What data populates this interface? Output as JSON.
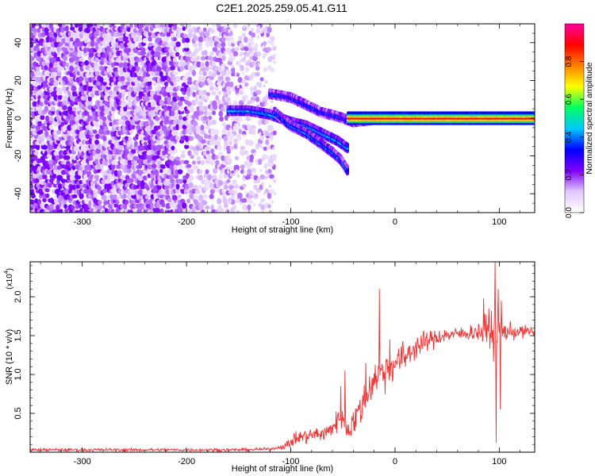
{
  "title": "C2E1.2025.259.05.41.G11",
  "chart_data": [
    {
      "type": "heatmap",
      "xlabel": "Height of straight line (km)",
      "ylabel": "Frequency (Hz)",
      "xlim": [
        -350,
        134
      ],
      "ylim": [
        -50,
        50
      ],
      "x_ticks": [
        -300,
        -200,
        -100,
        0,
        100
      ],
      "y_ticks": [
        -40,
        -20,
        0,
        20,
        40
      ],
      "colorbar": {
        "label": "Normalized spectral amplitude",
        "range": [
          0,
          1
        ],
        "ticks": [
          0.0,
          0.2,
          0.4,
          0.6,
          0.8
        ],
        "colors": [
          "#ffffff",
          "#e0c8ff",
          "#8000ff",
          "#0000ff",
          "#00c8ff",
          "#00ff60",
          "#ffff00",
          "#ff8000",
          "#ff0000",
          "#ff00a0"
        ]
      },
      "features": {
        "noise_band_x": [
          -350,
          -115
        ],
        "main_line": {
          "x_start": -45,
          "x_end": 134,
          "frequency": 0,
          "amplitude": 0.9
        },
        "upper_branch": [
          [
            -120,
            13
          ],
          [
            -100,
            11
          ],
          [
            -85,
            7
          ],
          [
            -70,
            3
          ],
          [
            -55,
            1
          ],
          [
            -40,
            -2
          ],
          [
            -25,
            -1
          ],
          [
            -10,
            0
          ]
        ],
        "middle_branch": [
          [
            -160,
            4
          ],
          [
            -140,
            4
          ],
          [
            -120,
            2
          ],
          [
            -100,
            -2
          ],
          [
            -85,
            -4
          ],
          [
            -70,
            -8
          ],
          [
            -55,
            -12
          ],
          [
            -45,
            -16
          ]
        ],
        "lower_branch": [
          [
            -115,
            3
          ],
          [
            -100,
            -4
          ],
          [
            -85,
            -8
          ],
          [
            -75,
            -12
          ],
          [
            -60,
            -18
          ],
          [
            -52,
            -22
          ],
          [
            -45,
            -28
          ]
        ]
      }
    },
    {
      "type": "line",
      "xlabel": "Height of straight line (km)",
      "ylabel": "SNR (10 * v/v)",
      "scale_label": "(x10",
      "scale_exp": "4",
      "scale_close": ")",
      "xlim": [
        -350,
        134
      ],
      "ylim": [
        0,
        2.45
      ],
      "x_ticks": [
        -300,
        -200,
        -100,
        0,
        100
      ],
      "y_ticks": [
        "0.5",
        "1.0",
        "1.5",
        "2.0"
      ],
      "series": [
        {
          "color": "#ee3333",
          "x_step": 0.5,
          "envelope": [
            [
              -350,
              0.03
            ],
            [
              -250,
              0.03
            ],
            [
              -150,
              0.03
            ],
            [
              -120,
              0.04
            ],
            [
              -105,
              0.08
            ],
            [
              -95,
              0.18
            ],
            [
              -80,
              0.22
            ],
            [
              -65,
              0.25
            ],
            [
              -52,
              0.45
            ],
            [
              -45,
              0.3
            ],
            [
              -35,
              0.5
            ],
            [
              -25,
              0.8
            ],
            [
              -20,
              0.95
            ],
            [
              -10,
              1.05
            ],
            [
              0,
              1.15
            ],
            [
              10,
              1.25
            ],
            [
              20,
              1.35
            ],
            [
              30,
              1.42
            ],
            [
              45,
              1.5
            ],
            [
              60,
              1.52
            ],
            [
              80,
              1.55
            ],
            [
              100,
              1.55
            ],
            [
              134,
              1.55
            ]
          ],
          "noise": [
            [
              -350,
              0.02
            ],
            [
              -110,
              0.02
            ],
            [
              -100,
              0.08
            ],
            [
              -60,
              0.12
            ],
            [
              -40,
              0.2
            ],
            [
              -10,
              0.25
            ],
            [
              20,
              0.15
            ],
            [
              60,
              0.08
            ],
            [
              80,
              0.12
            ],
            [
              95,
              0.3
            ],
            [
              105,
              0.12
            ],
            [
              134,
              0.06
            ]
          ],
          "spikes": [
            [
              -15,
              2.1
            ],
            [
              -48,
              1.05
            ],
            [
              -52,
              0.85
            ],
            [
              -28,
              1.15
            ],
            [
              -5,
              1.45
            ],
            [
              10,
              1.1
            ],
            [
              20,
              1.42
            ],
            [
              85,
              1.98
            ],
            [
              90,
              1.85
            ],
            [
              96,
              2.45
            ],
            [
              97,
              0.12
            ],
            [
              99,
              2.1
            ],
            [
              101,
              0.55
            ],
            [
              102,
              1.95
            ]
          ]
        }
      ]
    }
  ]
}
